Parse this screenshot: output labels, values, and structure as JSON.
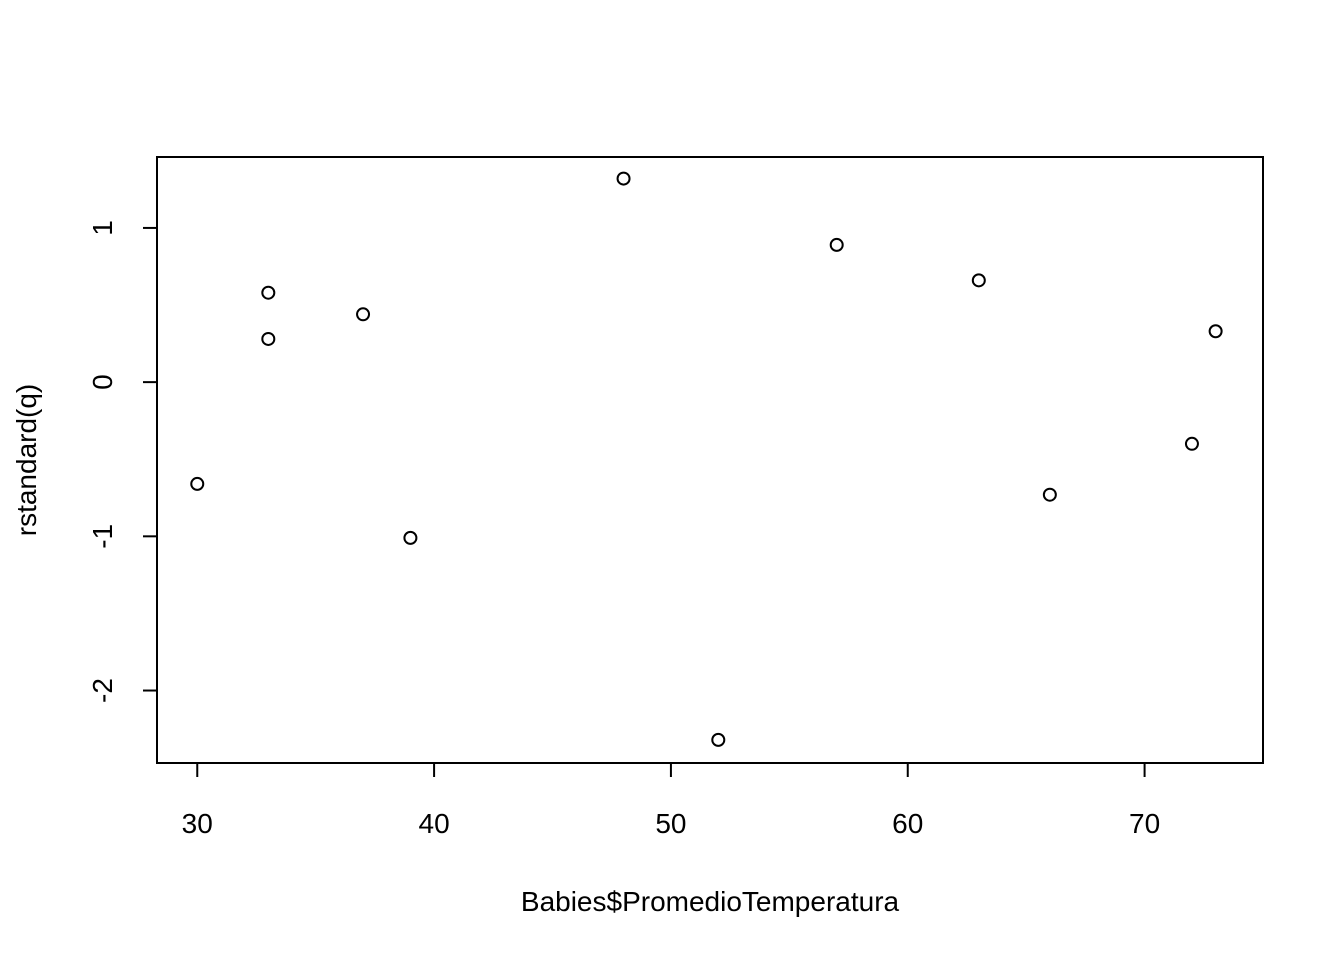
{
  "chart_data": {
    "type": "scatter",
    "title": "",
    "xlabel": "Babies$PromedioTemperatura",
    "ylabel": "rstandard(q)",
    "xlim": [
      28.3,
      75.0
    ],
    "ylim": [
      -2.47,
      1.46
    ],
    "x_ticks": [
      30,
      40,
      50,
      60,
      70
    ],
    "y_ticks": [
      -2,
      -1,
      0,
      1
    ],
    "grid": false,
    "legend": "none",
    "marker": "open-circle",
    "point_color": "#000000",
    "series": [
      {
        "points": [
          {
            "x": 30,
            "y": -0.66
          },
          {
            "x": 33,
            "y": 0.58
          },
          {
            "x": 33,
            "y": 0.28
          },
          {
            "x": 37,
            "y": 0.44
          },
          {
            "x": 39,
            "y": -1.01
          },
          {
            "x": 48,
            "y": 1.32
          },
          {
            "x": 52,
            "y": -2.32
          },
          {
            "x": 57,
            "y": 0.89
          },
          {
            "x": 63,
            "y": 0.66
          },
          {
            "x": 66,
            "y": -0.73
          },
          {
            "x": 72,
            "y": -0.4
          },
          {
            "x": 73,
            "y": 0.33
          }
        ]
      }
    ]
  }
}
